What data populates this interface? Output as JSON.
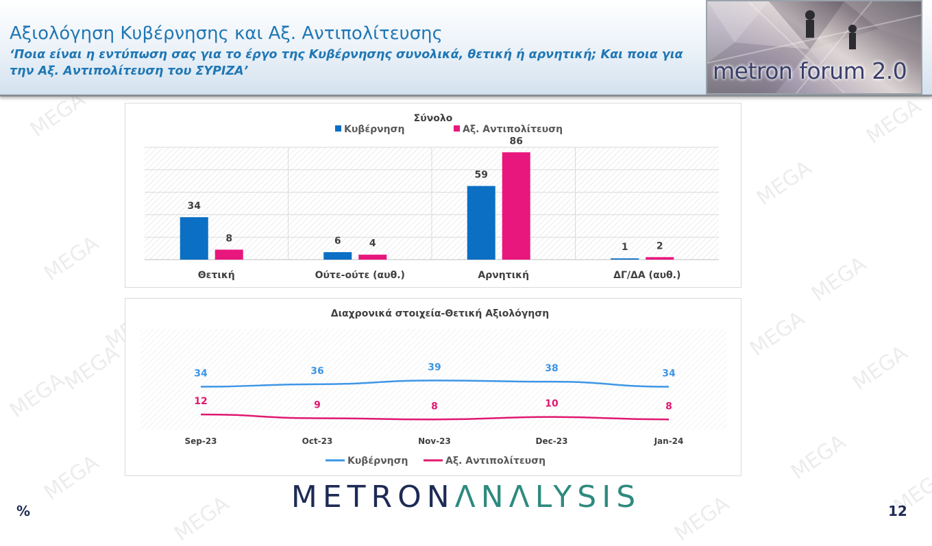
{
  "header": {
    "title": "Αξιολόγηση Κυβέρνησης και Αξ. Αντιπολίτευσης",
    "subtitle": "‘Ποια είναι η εντύπωση σας για το έργο της Κυβέρνησης συνολικά, θετική ή αρνητική; Και ποια για την Αξ. Αντιπολίτευση του ΣΥΡΙΖΑ’",
    "logo_text": "metron forum 2.0"
  },
  "footer": {
    "brand_part1": "METRON",
    "brand_part2": "ΛNΛLYSIS",
    "percent_symbol": "%",
    "page_number": "12"
  },
  "watermark_text": "MEGA",
  "colors": {
    "gov_bar": "#0b6fc4",
    "opp_bar": "#e8177d",
    "gov_line": "#3d95e6",
    "opp_line": "#e0176f",
    "title_blue": "#1f77b4"
  },
  "chart_data": [
    {
      "type": "bar",
      "title": "Σύνολο",
      "categories": [
        "Θετική",
        "Ούτε-ούτε (αυθ.)",
        "Αρνητική",
        "ΔΓ/ΔΑ (αυθ.)"
      ],
      "series": [
        {
          "name": "Κυβέρνηση",
          "values": [
            34,
            6,
            59,
            1
          ]
        },
        {
          "name": "Αξ. Αντιπολίτευση",
          "values": [
            8,
            4,
            86,
            2
          ]
        }
      ],
      "ylim": [
        0,
        90
      ],
      "legend": "top",
      "grid": true
    },
    {
      "type": "line",
      "title": "Διαχρονικά στοιχεία-Θετική Αξιολόγηση",
      "categories": [
        "Sep-23",
        "Oct-23",
        "Nov-23",
        "Dec-23",
        "Jan-24"
      ],
      "series": [
        {
          "name": "Κυβέρνηση",
          "values": [
            34,
            36,
            39,
            38,
            34
          ]
        },
        {
          "name": "Αξ. Αντιπολίτευση",
          "values": [
            12,
            9,
            8,
            10,
            8
          ]
        }
      ],
      "ylim": [
        0,
        80
      ],
      "legend": "bottom",
      "grid": false
    }
  ]
}
